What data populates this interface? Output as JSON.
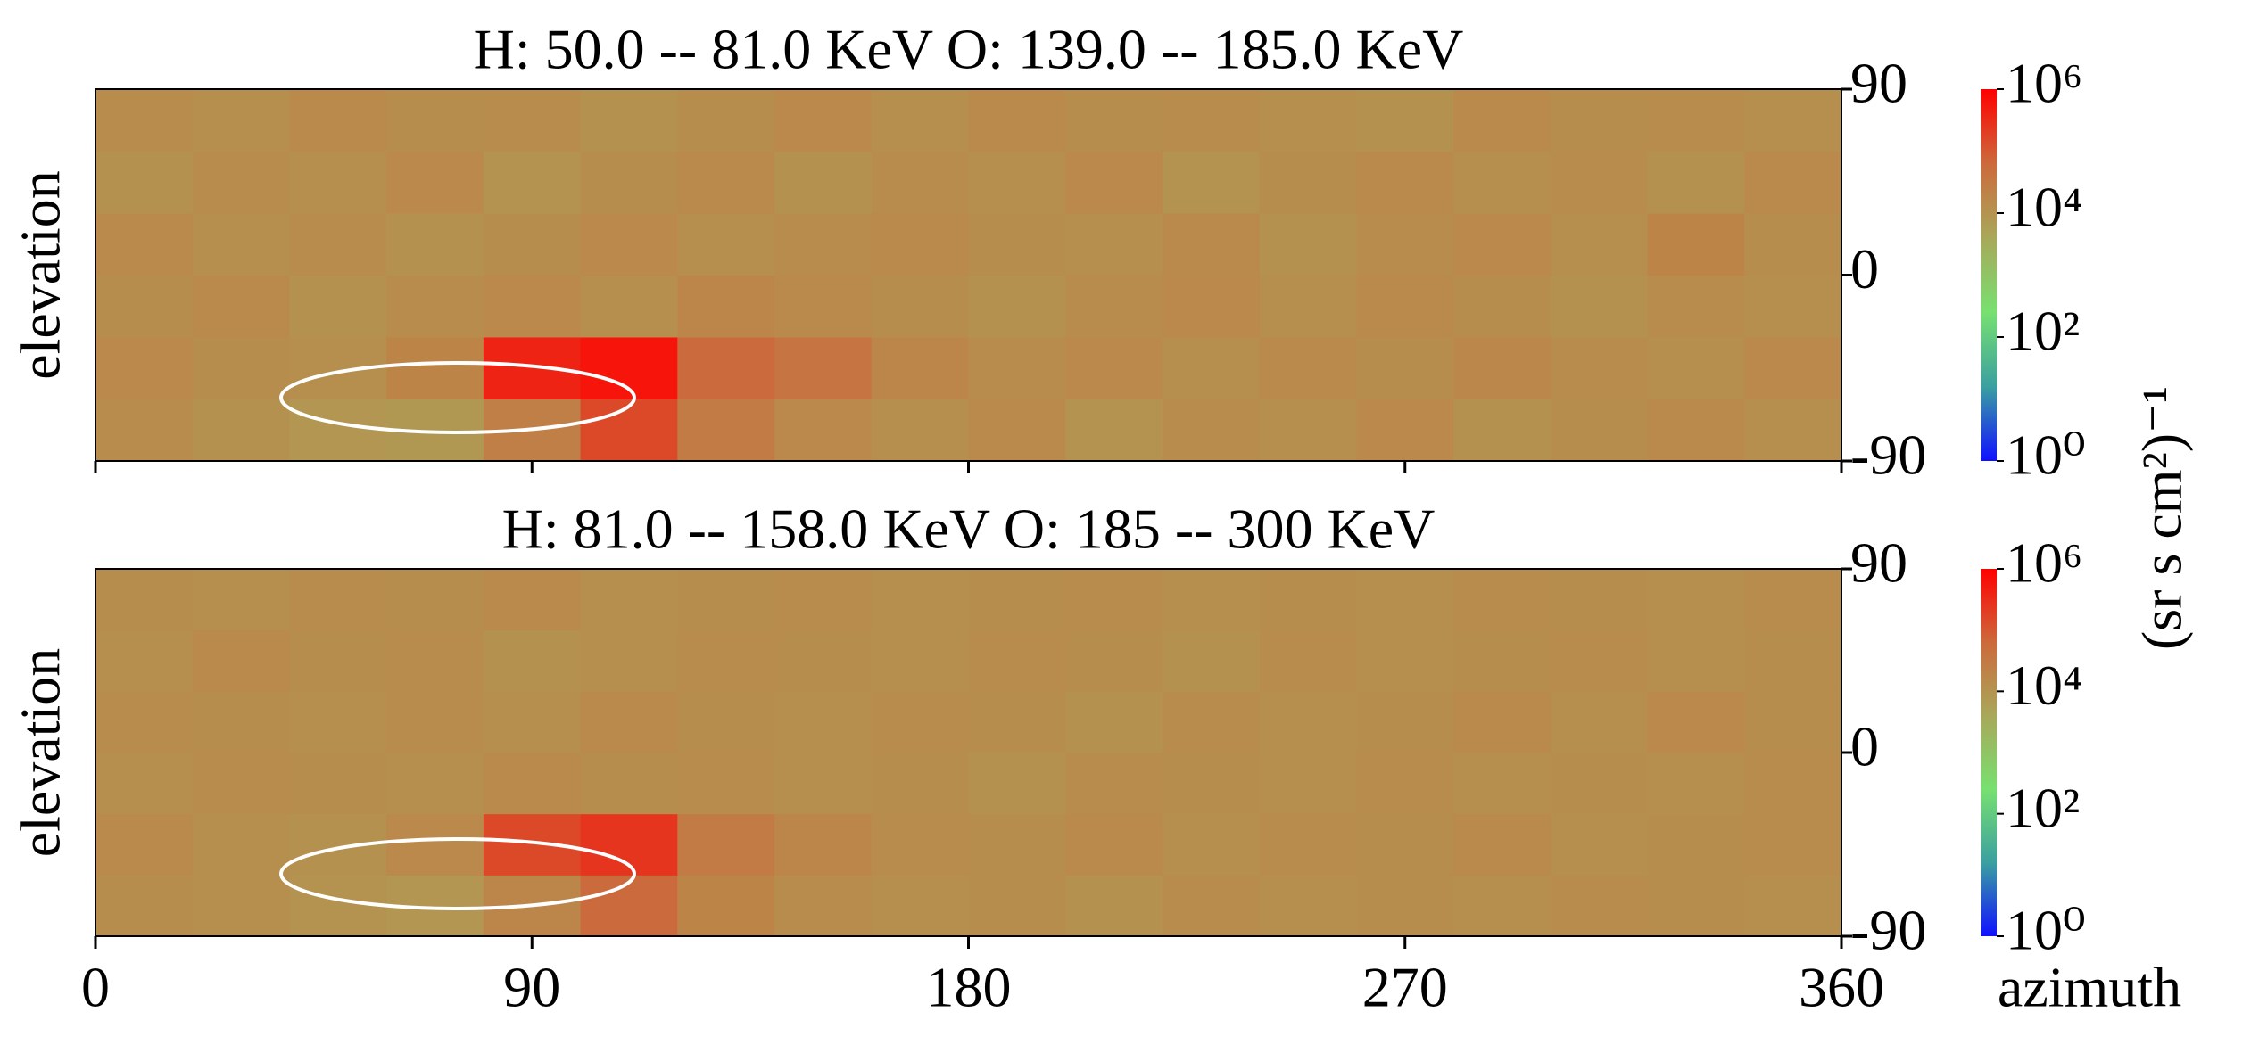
{
  "chart_data": {
    "type": "heatmap",
    "xlabel": "azimuth",
    "ylabel": "elevation",
    "colorbar_label": "(sr s cm²)⁻¹",
    "x_edges": [
      0,
      20,
      40,
      60,
      80,
      100,
      120,
      140,
      160,
      180,
      200,
      220,
      240,
      260,
      280,
      300,
      320,
      340,
      360
    ],
    "y_edges": [
      -90,
      -60,
      -30,
      0,
      30,
      60,
      90
    ],
    "xlim": [
      0,
      360
    ],
    "xticks": [
      0,
      90,
      180,
      270,
      360
    ],
    "ylim": [
      -90,
      90
    ],
    "yticks": [
      -90,
      0,
      90
    ],
    "zlim": [
      1,
      1000000
    ],
    "zscale": "log",
    "zticks": [
      {
        "value": 1,
        "label": "10⁰"
      },
      {
        "value": 100,
        "label": "10²"
      },
      {
        "value": 10000,
        "label": "10⁴"
      },
      {
        "value": 1000000,
        "label": "10⁶"
      }
    ],
    "colormap": [
      "#1010ff",
      "#3aa0a0",
      "#78e070",
      "#a8a85a",
      "#cc6a3c",
      "#ff0000"
    ],
    "panels": [
      {
        "title": "H: 50.0  --  81.0 KeV  O: 139.0  -- 185.0 KeV",
        "z": [
          [
            14000,
            11000,
            9000,
            8000,
            25000,
            150000,
            30000,
            16000,
            12000,
            15000,
            10000,
            14000,
            12000,
            16000,
            11000,
            13000,
            15000,
            12000
          ],
          [
            16000,
            13000,
            12000,
            20000,
            400000,
            600000,
            60000,
            40000,
            18000,
            14000,
            16000,
            12000,
            15000,
            13000,
            17000,
            14000,
            12000,
            16000
          ],
          [
            13000,
            15000,
            11000,
            14000,
            16000,
            12000,
            18000,
            15000,
            13000,
            11000,
            14000,
            16000,
            12000,
            15000,
            13000,
            11000,
            14000,
            12000
          ],
          [
            15000,
            12000,
            14000,
            11000,
            13000,
            16000,
            12000,
            14000,
            15000,
            13000,
            12000,
            15000,
            11000,
            14000,
            16000,
            12000,
            20000,
            13000
          ],
          [
            11000,
            14000,
            12000,
            16000,
            10000,
            13000,
            15000,
            11000,
            14000,
            12000,
            16000,
            10000,
            13000,
            15000,
            12000,
            14000,
            11000,
            15000
          ],
          [
            14000,
            12000,
            15000,
            13000,
            14000,
            11000,
            13000,
            16000,
            12000,
            15000,
            13000,
            14000,
            12000,
            11000,
            15000,
            13000,
            14000,
            12000
          ]
        ]
      },
      {
        "title": "H: 81.0  --  158.0 KeV  O: 185  --  300 KeV",
        "z": [
          [
            13000,
            12000,
            10000,
            9000,
            18000,
            60000,
            20000,
            14000,
            12000,
            13000,
            11000,
            14000,
            12000,
            13000,
            12000,
            14000,
            13000,
            12000
          ],
          [
            15000,
            12000,
            11000,
            16000,
            150000,
            250000,
            30000,
            18000,
            14000,
            13000,
            15000,
            12000,
            14000,
            13000,
            15000,
            12000,
            13000,
            14000
          ],
          [
            12000,
            14000,
            13000,
            12000,
            15000,
            13000,
            14000,
            12000,
            13000,
            11000,
            14000,
            13000,
            12000,
            14000,
            12000,
            13000,
            12000,
            14000
          ],
          [
            14000,
            13000,
            12000,
            14000,
            12000,
            15000,
            13000,
            12000,
            14000,
            13000,
            11000,
            14000,
            12000,
            13000,
            15000,
            12000,
            16000,
            13000
          ],
          [
            12000,
            15000,
            13000,
            14000,
            11000,
            12000,
            14000,
            13000,
            12000,
            14000,
            13000,
            11000,
            14000,
            12000,
            13000,
            14000,
            12000,
            13000
          ],
          [
            13000,
            12000,
            14000,
            13000,
            15000,
            12000,
            13000,
            14000,
            12000,
            13000,
            14000,
            12000,
            13000,
            12000,
            14000,
            13000,
            12000,
            14000
          ]
        ]
      }
    ]
  }
}
